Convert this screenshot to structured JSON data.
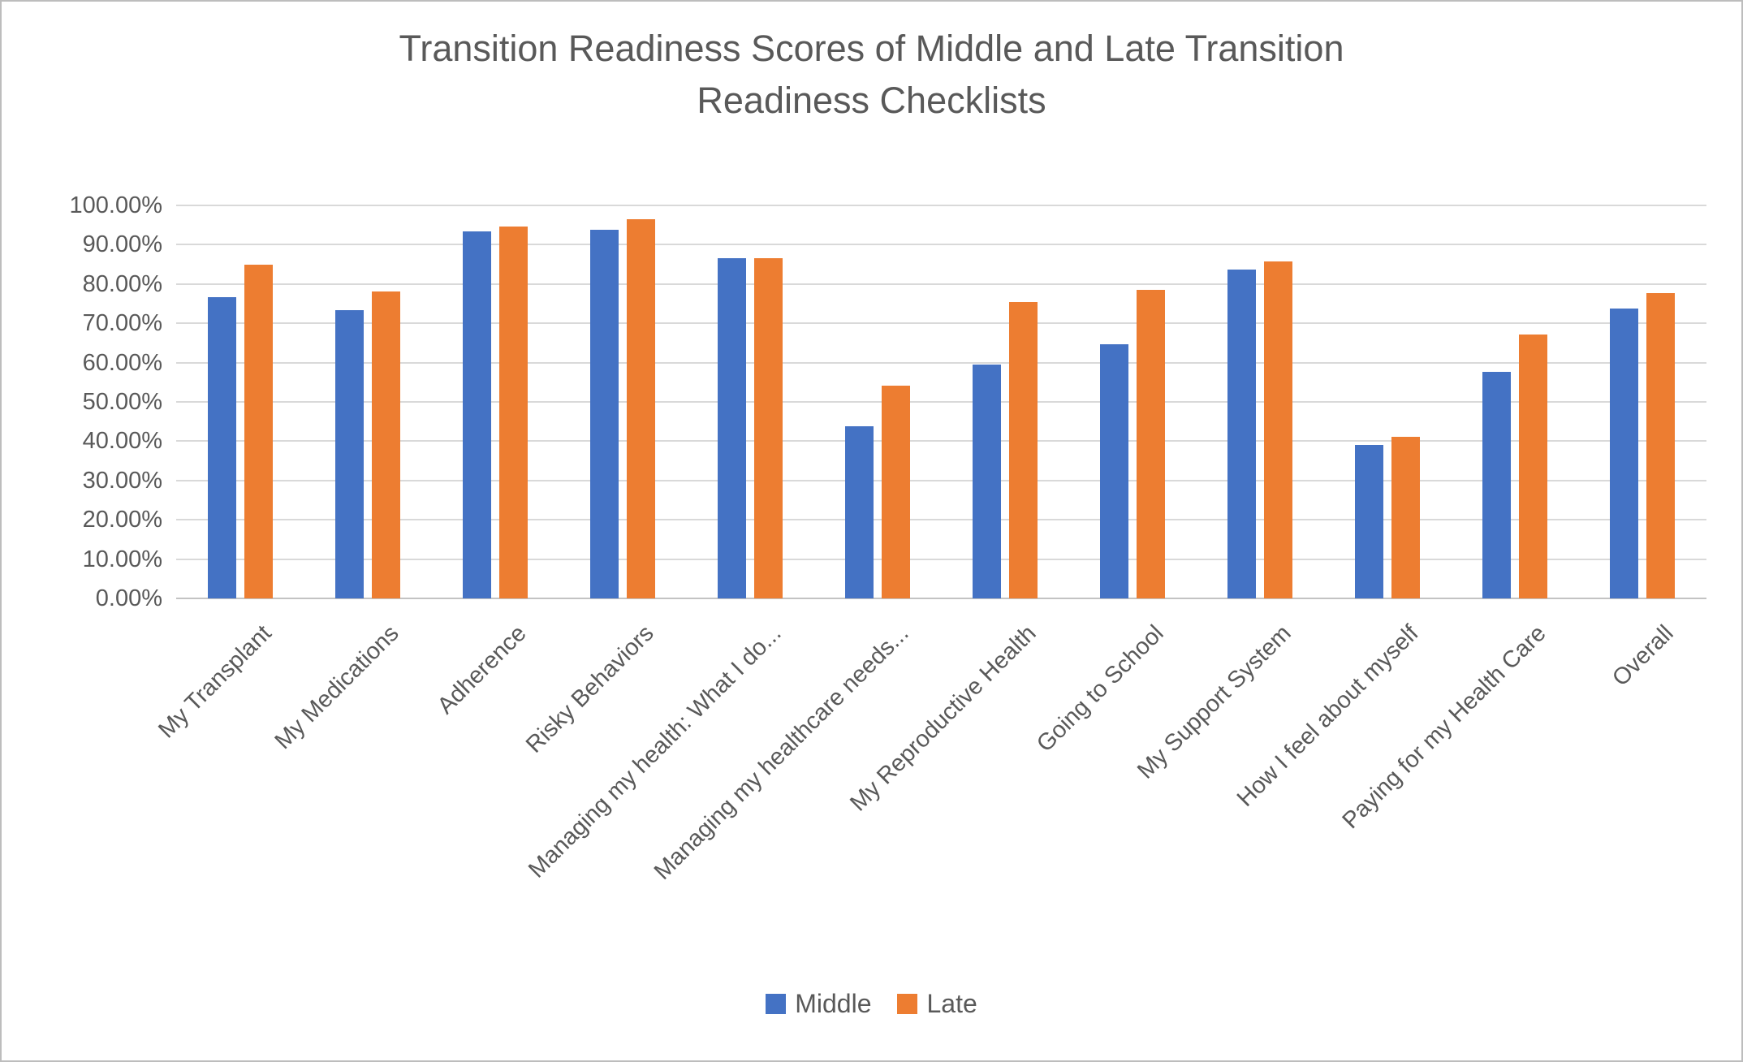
{
  "chart_data": {
    "type": "bar",
    "title": "Transition Readiness Scores of Middle and Late Transition Readiness Checklists",
    "categories": [
      "My Transplant",
      "My Medications",
      "Adherence",
      "Risky Behaviors",
      "Managing my health: What I do...",
      "Managing my healthcare needs...",
      "My Reproductive Health",
      "Going to School",
      "My Support System",
      "How I feel about myself",
      "Paying for my Health Care",
      "Overall"
    ],
    "series": [
      {
        "name": "Middle",
        "color": "#4472C4",
        "values": [
          76.7,
          73.3,
          93.3,
          93.7,
          86.5,
          43.9,
          59.6,
          64.6,
          83.6,
          39.0,
          57.6,
          73.8
        ]
      },
      {
        "name": "Late",
        "color": "#ED7D31",
        "values": [
          85.0,
          78.0,
          94.6,
          96.5,
          86.5,
          54.2,
          75.4,
          78.6,
          85.8,
          41.2,
          67.1,
          77.7
        ]
      }
    ],
    "xlabel": "",
    "ylabel": "",
    "ylim": [
      0,
      100
    ],
    "ytick_step": 10,
    "yticks": [
      "0.00%",
      "10.00%",
      "20.00%",
      "30.00%",
      "40.00%",
      "50.00%",
      "60.00%",
      "70.00%",
      "80.00%",
      "90.00%",
      "100.00%"
    ],
    "grid": true,
    "legend_position": "bottom",
    "gridline_color": "#D9D9D9",
    "text_color": "#595959"
  }
}
